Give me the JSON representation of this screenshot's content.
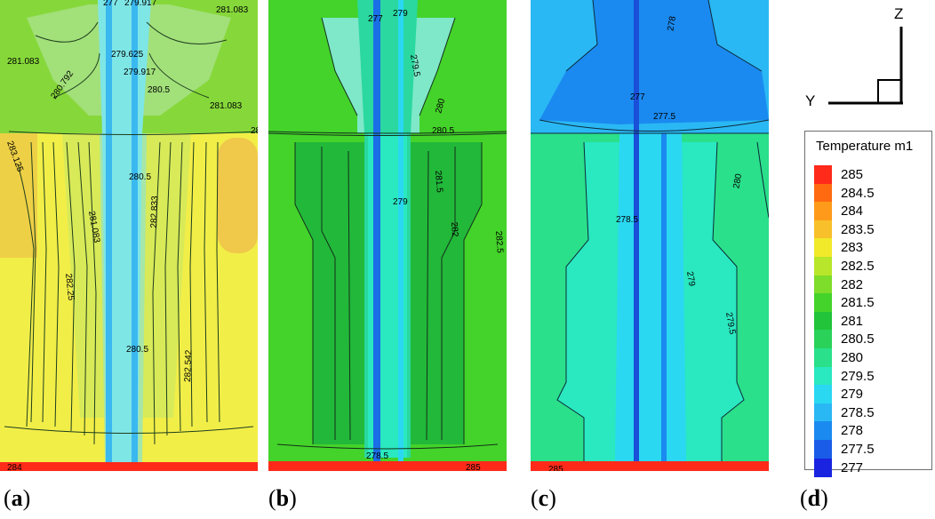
{
  "panels": [
    {
      "tag": "a",
      "labels": [
        "279.917",
        "281.083",
        "281.083",
        "280.792",
        "279.625",
        "279.917",
        "280.5",
        "281.083",
        "280.5",
        "283.125",
        "280.5",
        "281.083",
        "282.833",
        "282.25",
        "280.5",
        "282.542",
        "284",
        "277"
      ]
    },
    {
      "tag": "b",
      "labels": [
        "277",
        "279",
        "279.5",
        "280",
        "280.5",
        "281.5",
        "279",
        "282",
        "282.5",
        "278.5",
        "285"
      ]
    },
    {
      "tag": "c",
      "labels": [
        "278",
        "277",
        "277.5",
        "280",
        "278.5",
        "279",
        "279.5",
        "285"
      ]
    },
    {
      "tag": "d"
    }
  ],
  "legend": {
    "title": "Temperature m1",
    "levels": [
      {
        "value": "285",
        "color": "#ff2a1a"
      },
      {
        "value": "284.5",
        "color": "#ff6a10"
      },
      {
        "value": "284",
        "color": "#ff9a1a"
      },
      {
        "value": "283.5",
        "color": "#f8c02a"
      },
      {
        "value": "283",
        "color": "#f0ea2a"
      },
      {
        "value": "282.5",
        "color": "#b8e62a"
      },
      {
        "value": "282",
        "color": "#7edc2a"
      },
      {
        "value": "281.5",
        "color": "#44d32a"
      },
      {
        "value": "281",
        "color": "#22c43a"
      },
      {
        "value": "280.5",
        "color": "#2ad25a"
      },
      {
        "value": "280",
        "color": "#2ae08a"
      },
      {
        "value": "279.5",
        "color": "#2ae8c0"
      },
      {
        "value": "279",
        "color": "#2ad8f2"
      },
      {
        "value": "278.5",
        "color": "#2ab8f4"
      },
      {
        "value": "278",
        "color": "#1a8af0"
      },
      {
        "value": "277.5",
        "color": "#1a5ce8"
      },
      {
        "value": "277",
        "color": "#1a24e0"
      }
    ]
  },
  "axes": {
    "vertical": "Z",
    "horizontal": "Y"
  }
}
